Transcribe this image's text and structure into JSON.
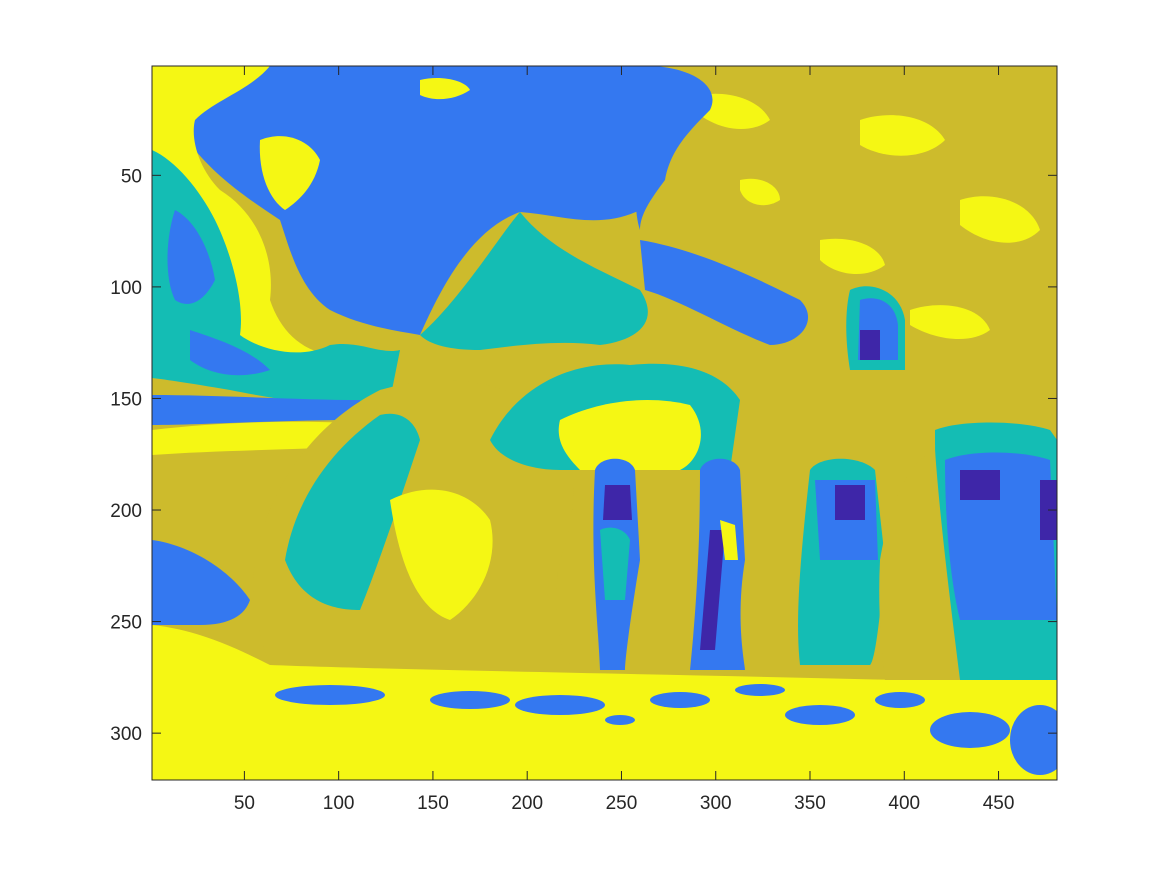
{
  "chart_data": {
    "type": "heatmap",
    "title": "",
    "xlabel": "",
    "ylabel": "",
    "xlim": [
      1,
      481
    ],
    "ylim": [
      1,
      321
    ],
    "y_axis_direction": "reversed",
    "x_ticks": [
      50,
      100,
      150,
      200,
      250,
      300,
      350,
      400,
      450
    ],
    "y_ticks": [
      50,
      100,
      150,
      200,
      250,
      300
    ],
    "x_tick_labels": [
      "50",
      "100",
      "150",
      "200",
      "250",
      "300",
      "350",
      "400",
      "450"
    ],
    "y_tick_labels": [
      "50",
      "100",
      "150",
      "200",
      "250",
      "300"
    ],
    "grid": false,
    "colorbar": false,
    "levels": 5,
    "colormap": [
      "#3e26a8",
      "#3478f0",
      "#14bdb4",
      "#cdbb2c",
      "#f5f714"
    ],
    "frame_color": "#262626",
    "content": "segmented photograph of four people among large rounded rocks with trees in the background, rendered as 5 quantized parula levels"
  }
}
